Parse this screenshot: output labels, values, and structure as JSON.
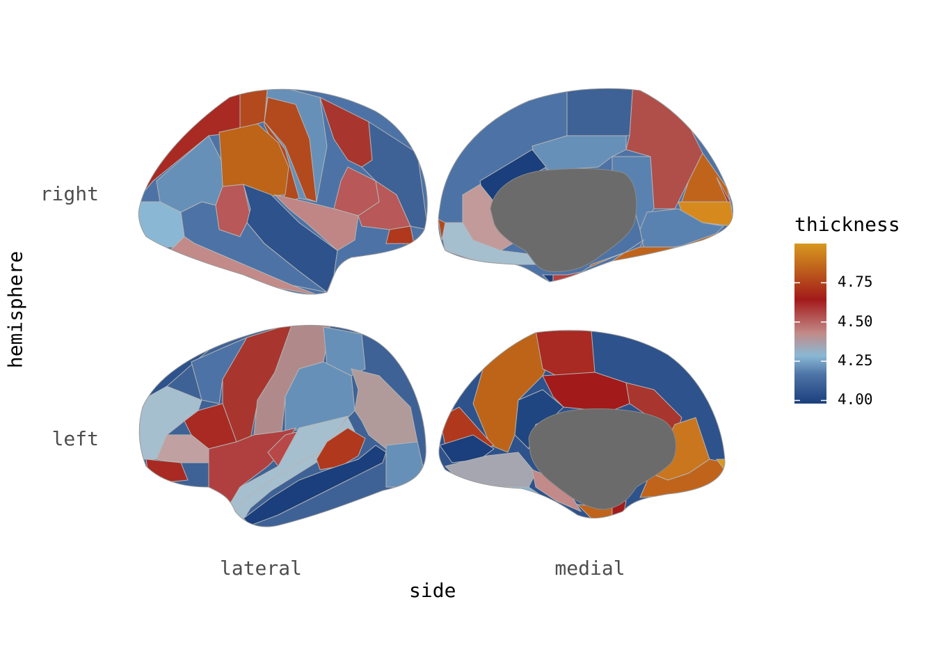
{
  "chart_data": {
    "type": "heatmap",
    "title": "",
    "xlabel": "side",
    "ylabel": "hemisphere",
    "columns": [
      "lateral",
      "medial"
    ],
    "rows": [
      "right",
      "left"
    ],
    "legend": {
      "title": "thickness",
      "ticks": [
        4.0,
        4.25,
        4.5,
        4.75
      ],
      "tick_labels": [
        "4.00",
        "4.25",
        "4.50",
        "4.75"
      ],
      "range": [
        3.98,
        5.0
      ],
      "placement": "right",
      "colors": [
        "#1b3f7c",
        "#4d73a6",
        "#8ab8d4",
        "#c28a88",
        "#a31a1a",
        "#c0641c",
        "#d8981e"
      ]
    },
    "nonvalue_color": "#6b6b6b",
    "grid": false,
    "panels": [
      {
        "hemisphere": "right",
        "side": "lateral"
      },
      {
        "hemisphere": "right",
        "side": "medial"
      },
      {
        "hemisphere": "left",
        "side": "lateral"
      },
      {
        "hemisphere": "left",
        "side": "medial"
      }
    ]
  }
}
